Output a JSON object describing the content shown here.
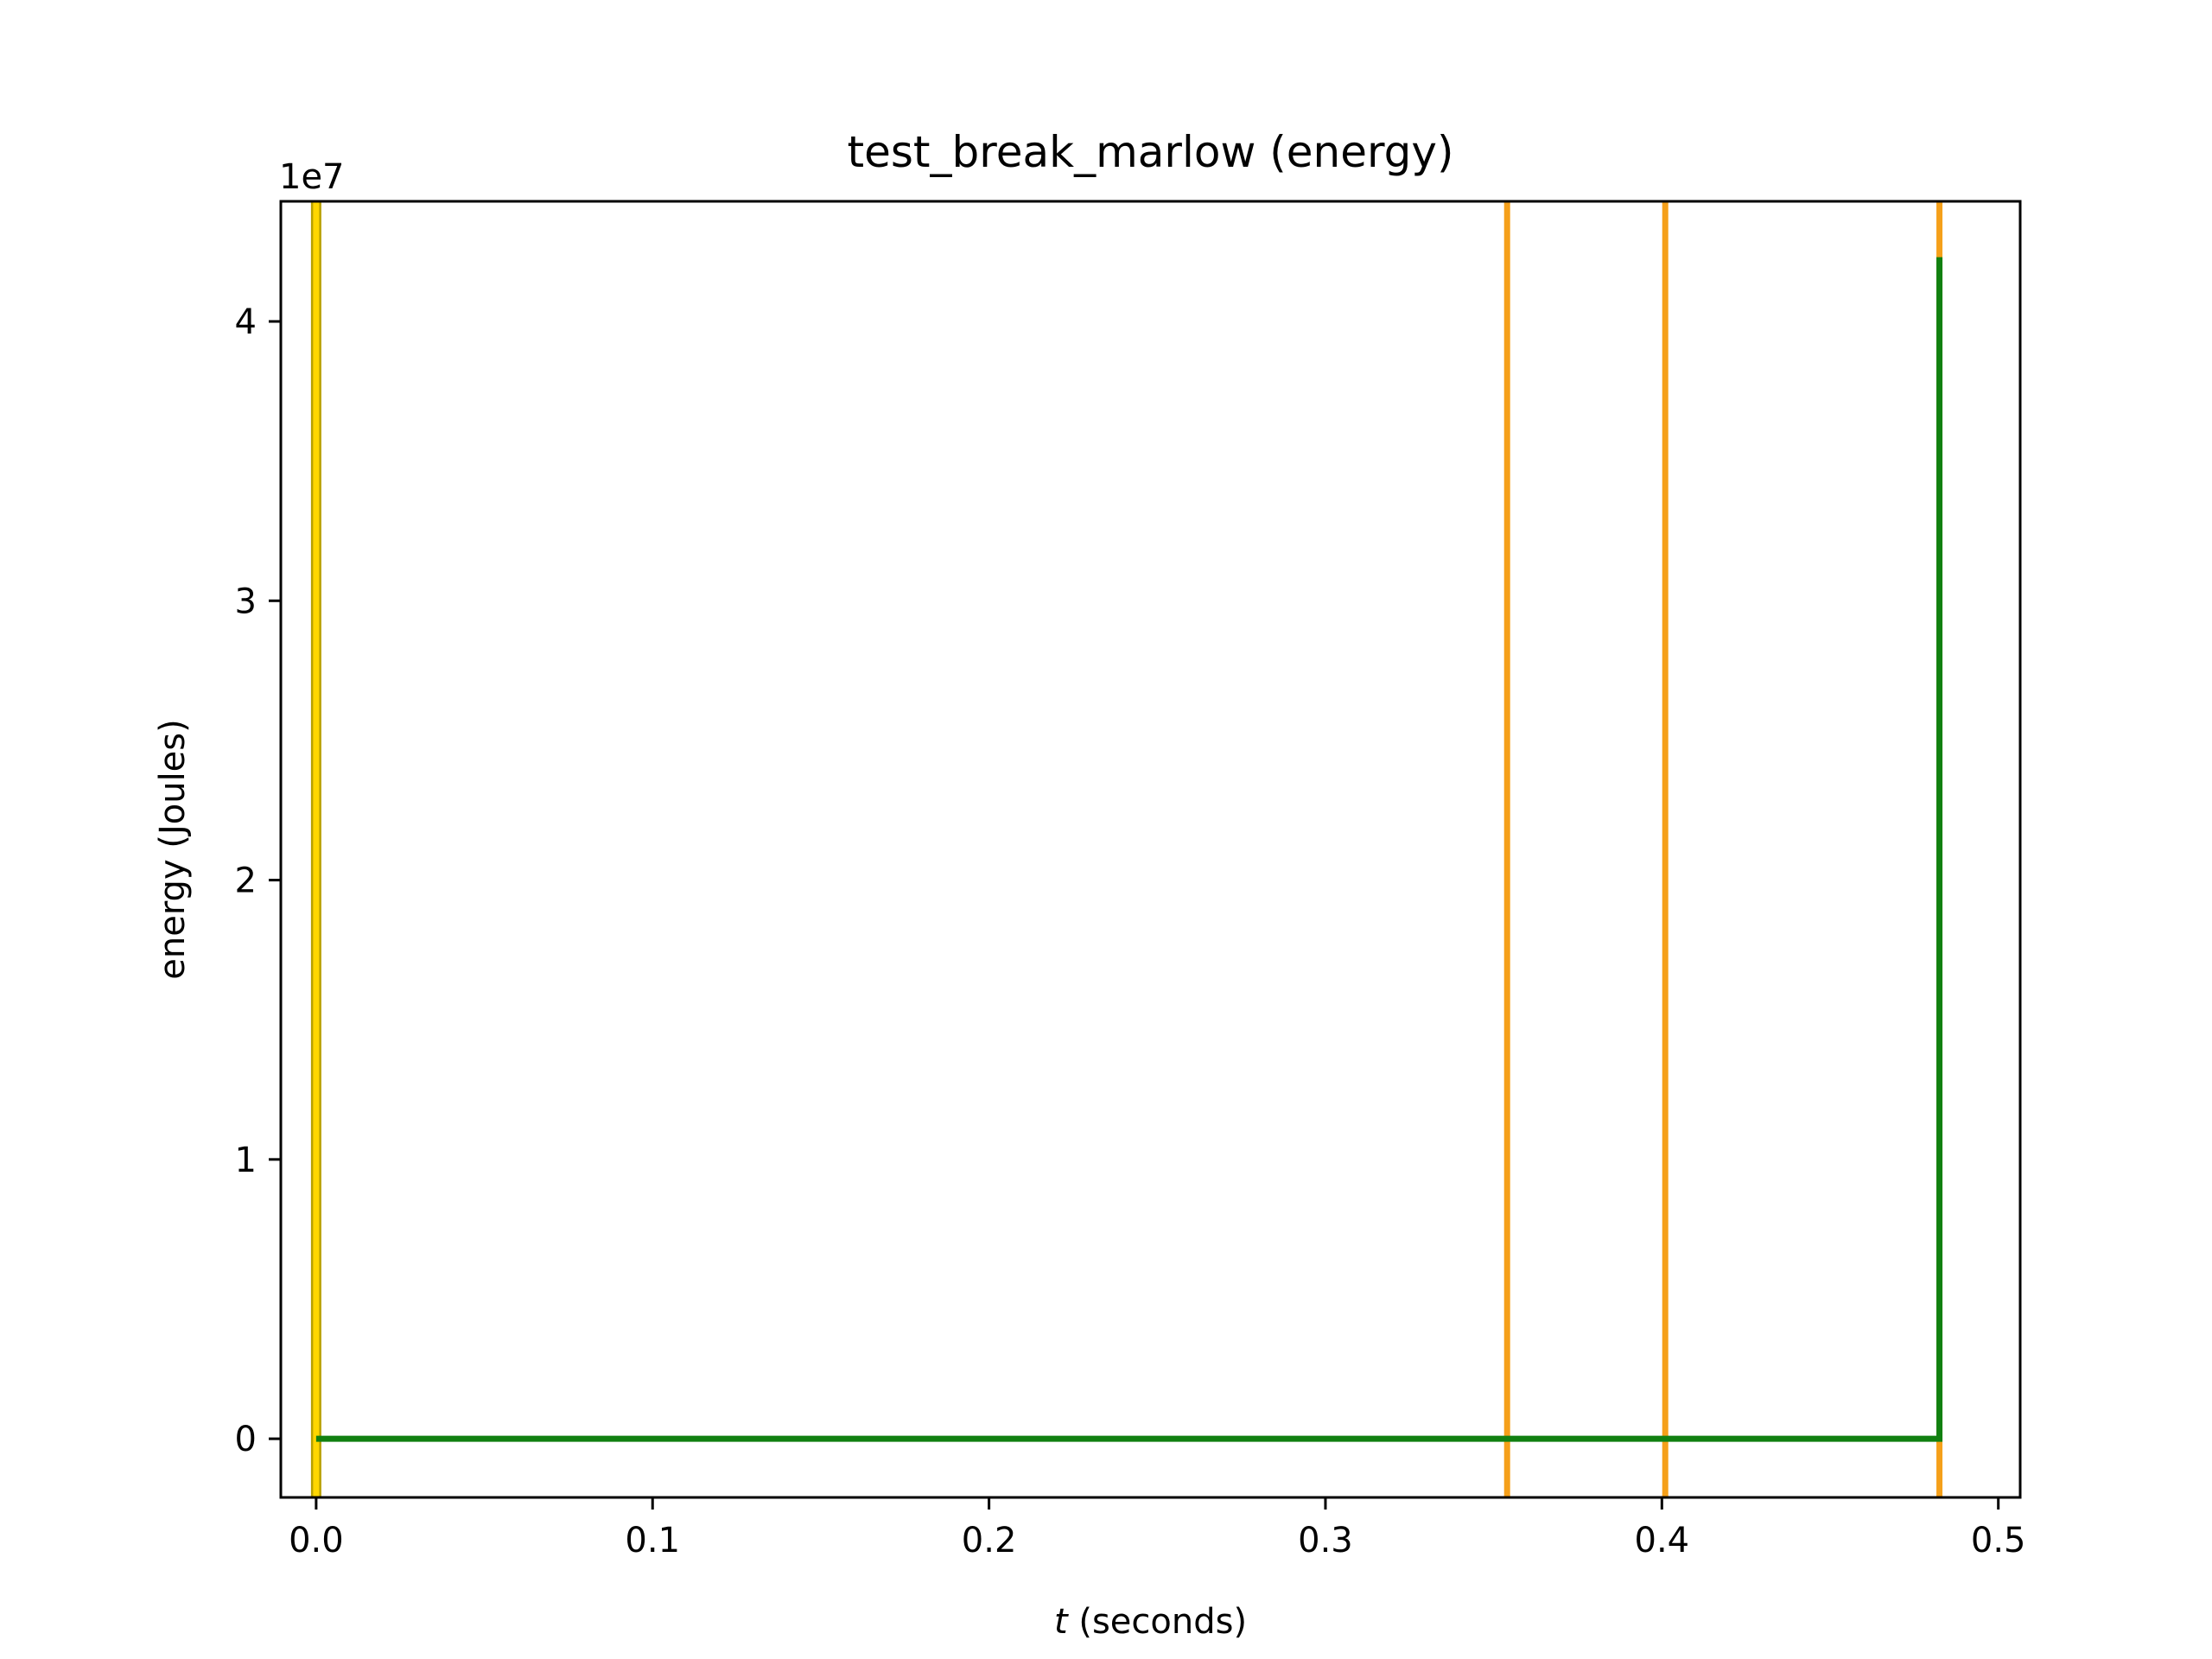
{
  "chart_data": {
    "type": "line",
    "title": "test_break_marlow (energy)",
    "xlabel_var": "t",
    "xlabel_rest": " (seconds)",
    "ylabel": "energy (Joules)",
    "y_offset_label": "1e7",
    "y_scale": 10000000,
    "xlim": [
      -0.0105,
      0.5065
    ],
    "ylim": [
      -2100000,
      44300000
    ],
    "x_ticks": [
      0.0,
      0.1,
      0.2,
      0.3,
      0.4,
      0.5
    ],
    "x_tick_labels": [
      "0.0",
      "0.1",
      "0.2",
      "0.3",
      "0.4",
      "0.5"
    ],
    "y_ticks": [
      0,
      10000000,
      20000000,
      30000000,
      40000000
    ],
    "y_tick_labels": [
      "0",
      "1",
      "2",
      "3",
      "4"
    ],
    "grid": false,
    "vlines": [
      {
        "x": 0.0,
        "color": "#ffd700",
        "edge": "#b8a000"
      },
      {
        "x": 0.354,
        "color": "#f5a01a"
      },
      {
        "x": 0.401,
        "color": "#f5a01a"
      },
      {
        "x": 0.4825,
        "color": "#f5a01a"
      }
    ],
    "series": [
      {
        "color": "#118011",
        "x": [
          0.0,
          0.4815,
          0.4825,
          0.4825
        ],
        "y": [
          0,
          0,
          0,
          42300000
        ]
      }
    ]
  }
}
